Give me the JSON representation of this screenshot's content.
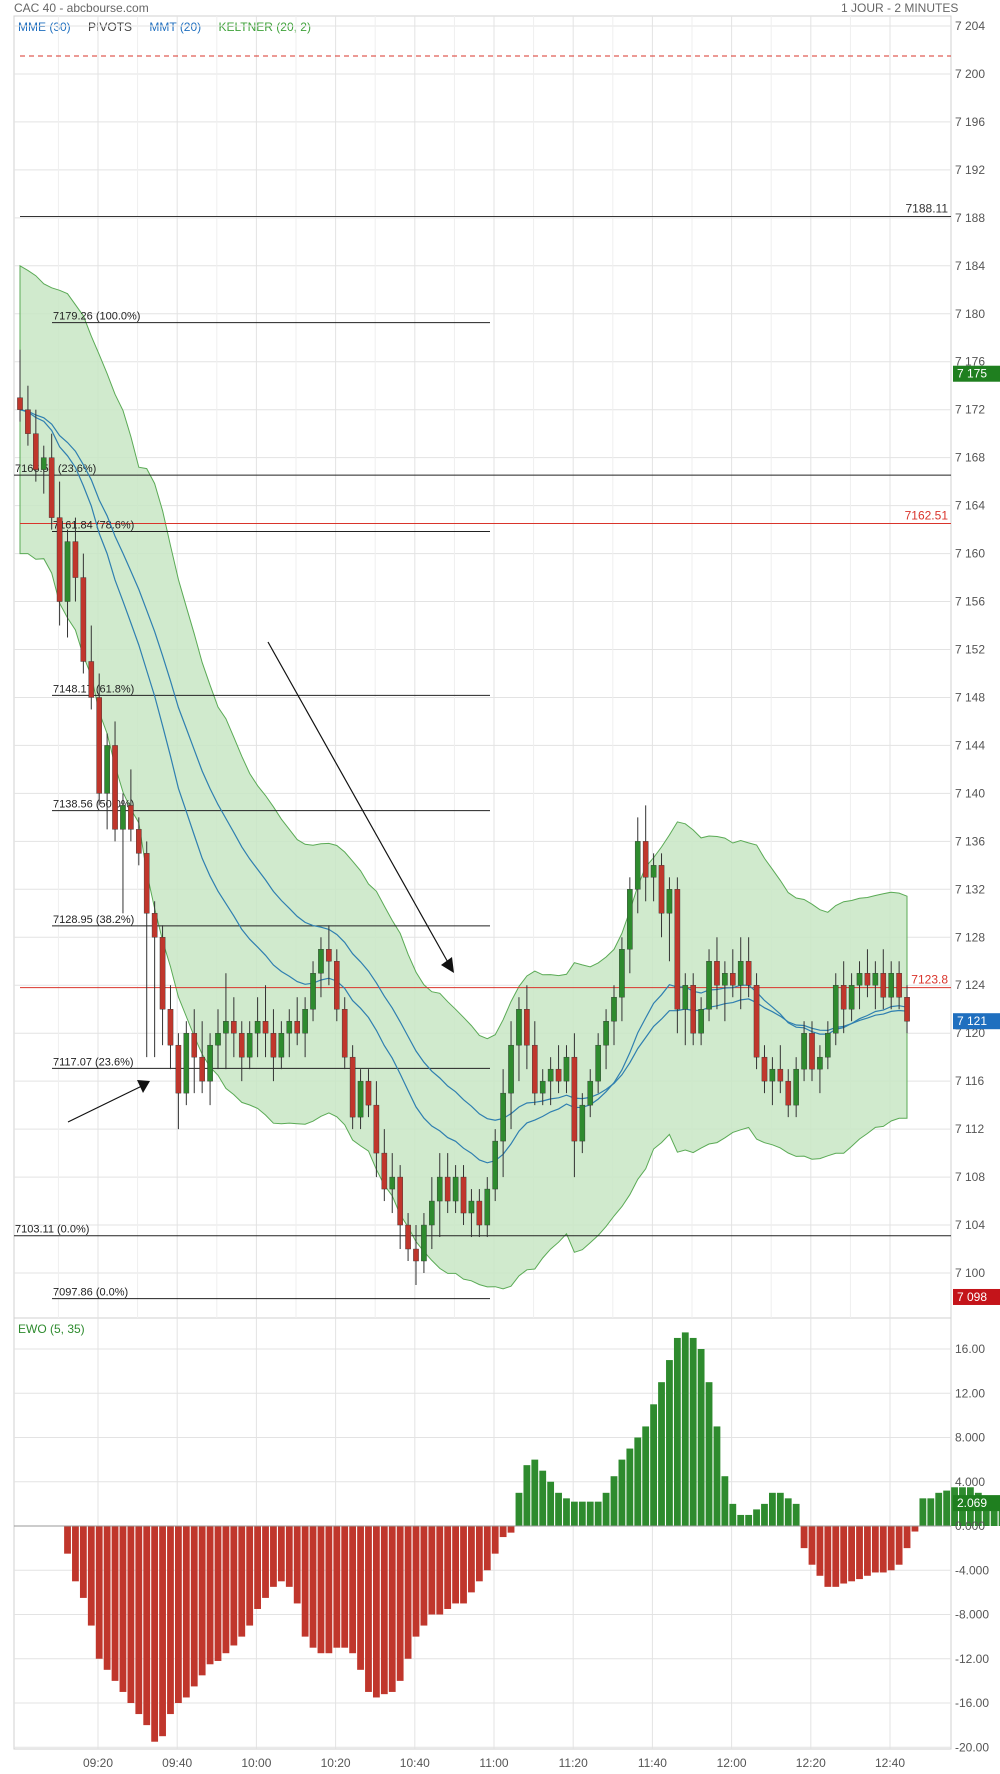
{
  "header": {
    "symbol_source": "CAC 40 - abcbourse.com",
    "timeframe": "1 JOUR - 2 MINUTES"
  },
  "legend_price": [
    {
      "label": "MME (30)",
      "color": "#1f6fbf"
    },
    {
      "label": "PIVOTS",
      "color": "#444444"
    },
    {
      "label": "MMT (20)",
      "color": "#1f6fbf"
    },
    {
      "label": "KELTNER (20, 2)",
      "color": "#3fa23a"
    }
  ],
  "legend_indicator": {
    "label": "EWO (5, 35)",
    "color": "#2e8b2e"
  },
  "colors": {
    "up": "#2e8b2e",
    "down": "#c0362c",
    "keltner_fill": "#c8e6c4",
    "keltner_line": "#5aaa55",
    "ma": "#2f7fb0",
    "grid": "#e3e3e3",
    "text": "#444444"
  },
  "chart_data": [
    {
      "type": "candlestick",
      "x_tick_labels": [
        "09:20",
        "09:40",
        "10:00",
        "10:20",
        "10:40",
        "11:00",
        "11:20",
        "11:40",
        "12:00",
        "12:20",
        "12:40"
      ],
      "y_tick_labels": [
        "7 204",
        "7 200",
        "7 196",
        "7 192",
        "7 188",
        "7 184",
        "7 180",
        "7 176",
        "7 172",
        "7 168",
        "7 164",
        "7 160",
        "7 156",
        "7 152",
        "7 148",
        "7 144",
        "7 140",
        "7 136",
        "7 132",
        "7 128",
        "7 124",
        "7 120",
        "7 116",
        "7 112",
        "7 108",
        "7 104",
        "7 100"
      ],
      "ylim": [
        7096.5,
        7205
      ],
      "candles": [
        [
          7173,
          7177,
          7171,
          7172
        ],
        [
          7172,
          7174,
          7169,
          7170
        ],
        [
          7170,
          7172,
          7166,
          7167
        ],
        [
          7167,
          7169,
          7165,
          7168
        ],
        [
          7168,
          7170,
          7162,
          7163
        ],
        [
          7163,
          7166,
          7154,
          7156
        ],
        [
          7156,
          7162,
          7153,
          7161
        ],
        [
          7161,
          7163,
          7156,
          7158
        ],
        [
          7158,
          7160,
          7150,
          7151
        ],
        [
          7151,
          7154,
          7147,
          7148
        ],
        [
          7148,
          7150,
          7139,
          7140
        ],
        [
          7140,
          7145,
          7137,
          7144
        ],
        [
          7144,
          7146,
          7136,
          7137
        ],
        [
          7137,
          7140,
          7130,
          7139
        ],
        [
          7139,
          7142,
          7136,
          7137
        ],
        [
          7137,
          7138,
          7134,
          7135
        ],
        [
          7135,
          7136,
          7118,
          7130
        ],
        [
          7130,
          7131,
          7118,
          7128
        ],
        [
          7128,
          7129,
          7119,
          7122
        ],
        [
          7122,
          7124,
          7117,
          7119
        ],
        [
          7119,
          7120,
          7112,
          7115
        ],
        [
          7115,
          7121,
          7114,
          7120
        ],
        [
          7120,
          7122,
          7115,
          7118
        ],
        [
          7118,
          7121,
          7115,
          7116
        ],
        [
          7116,
          7120,
          7114,
          7119
        ],
        [
          7119,
          7122,
          7117,
          7120
        ],
        [
          7120,
          7125,
          7117,
          7121
        ],
        [
          7121,
          7123,
          7118,
          7120
        ],
        [
          7120,
          7121,
          7116,
          7118
        ],
        [
          7118,
          7121,
          7117,
          7120
        ],
        [
          7120,
          7123,
          7118,
          7121
        ],
        [
          7121,
          7124,
          7118,
          7120
        ],
        [
          7120,
          7122,
          7116,
          7118
        ],
        [
          7118,
          7121,
          7117,
          7120
        ],
        [
          7120,
          7122,
          7118,
          7121
        ],
        [
          7121,
          7123,
          7119,
          7120
        ],
        [
          7120,
          7123,
          7118,
          7122
        ],
        [
          7122,
          7126,
          7121,
          7125
        ],
        [
          7125,
          7128,
          7123,
          7127
        ],
        [
          7127,
          7129,
          7124,
          7126
        ],
        [
          7126,
          7127,
          7121,
          7122
        ],
        [
          7122,
          7123,
          7117,
          7118
        ],
        [
          7118,
          7119,
          7112,
          7113
        ],
        [
          7113,
          7117,
          7112,
          7116
        ],
        [
          7116,
          7117,
          7113,
          7114
        ],
        [
          7114,
          7116,
          7108,
          7110
        ],
        [
          7110,
          7112,
          7106,
          7107
        ],
        [
          7107,
          7110,
          7105,
          7108
        ],
        [
          7108,
          7109,
          7102,
          7104
        ],
        [
          7104,
          7105,
          7101,
          7102
        ],
        [
          7102,
          7104,
          7099,
          7101
        ],
        [
          7101,
          7105,
          7100,
          7104
        ],
        [
          7104,
          7108,
          7102,
          7106
        ],
        [
          7106,
          7110,
          7103,
          7108
        ],
        [
          7108,
          7110,
          7105,
          7106
        ],
        [
          7106,
          7109,
          7105,
          7108
        ],
        [
          7108,
          7109,
          7104,
          7105
        ],
        [
          7105,
          7107,
          7103,
          7106
        ],
        [
          7106,
          7107,
          7103,
          7104
        ],
        [
          7104,
          7108,
          7103,
          7107
        ],
        [
          7107,
          7112,
          7106,
          7111
        ],
        [
          7111,
          7117,
          7108,
          7115
        ],
        [
          7115,
          7121,
          7112,
          7119
        ],
        [
          7119,
          7123,
          7116,
          7122
        ],
        [
          7122,
          7124,
          7117,
          7119
        ],
        [
          7119,
          7121,
          7114,
          7115
        ],
        [
          7115,
          7117,
          7114,
          7116
        ],
        [
          7116,
          7118,
          7114,
          7117
        ],
        [
          7117,
          7119,
          7115,
          7116
        ],
        [
          7116,
          7119,
          7115,
          7118
        ],
        [
          7118,
          7120,
          7108,
          7111
        ],
        [
          7111,
          7115,
          7110,
          7114
        ],
        [
          7114,
          7117,
          7113,
          7116
        ],
        [
          7116,
          7120,
          7115,
          7119
        ],
        [
          7119,
          7122,
          7117,
          7121
        ],
        [
          7121,
          7124,
          7119,
          7123
        ],
        [
          7123,
          7128,
          7121,
          7127
        ],
        [
          7127,
          7133,
          7125,
          7132
        ],
        [
          7132,
          7138,
          7130,
          7136
        ],
        [
          7136,
          7139,
          7131,
          7133
        ],
        [
          7133,
          7135,
          7131,
          7134
        ],
        [
          7134,
          7135,
          7128,
          7130
        ],
        [
          7130,
          7133,
          7126,
          7132
        ],
        [
          7132,
          7133,
          7120,
          7122
        ],
        [
          7122,
          7125,
          7119,
          7124
        ],
        [
          7124,
          7125,
          7119,
          7120
        ],
        [
          7120,
          7123,
          7119,
          7122
        ],
        [
          7122,
          7127,
          7121,
          7126
        ],
        [
          7126,
          7128,
          7122,
          7124
        ],
        [
          7124,
          7126,
          7121,
          7125
        ],
        [
          7125,
          7127,
          7123,
          7124
        ],
        [
          7124,
          7128,
          7122,
          7126
        ],
        [
          7126,
          7128,
          7123,
          7124
        ],
        [
          7124,
          7125,
          7117,
          7118
        ],
        [
          7118,
          7119,
          7115,
          7116
        ],
        [
          7116,
          7118,
          7114,
          7117
        ],
        [
          7117,
          7119,
          7115,
          7116
        ],
        [
          7116,
          7117,
          7113,
          7114
        ],
        [
          7114,
          7118,
          7113,
          7117
        ],
        [
          7117,
          7121,
          7116,
          7120
        ],
        [
          7120,
          7121,
          7116,
          7117
        ],
        [
          7117,
          7119,
          7115,
          7118
        ],
        [
          7118,
          7121,
          7117,
          7120
        ],
        [
          7120,
          7125,
          7119,
          7124
        ],
        [
          7124,
          7126,
          7120,
          7122
        ],
        [
          7122,
          7125,
          7121,
          7124
        ],
        [
          7124,
          7126,
          7122,
          7125
        ],
        [
          7125,
          7127,
          7123,
          7124
        ],
        [
          7124,
          7126,
          7122,
          7125
        ],
        [
          7125,
          7127,
          7122,
          7123
        ],
        [
          7123,
          7126,
          7122,
          7125
        ],
        [
          7125,
          7126,
          7122,
          7123
        ],
        [
          7123,
          7124,
          7120,
          7121
        ]
      ],
      "horizontal_levels": [
        {
          "label": "7188.11",
          "value": 7188.11,
          "color": "#333333",
          "dash": false,
          "span": "full"
        },
        {
          "label": "7162.51",
          "value": 7162.51,
          "color": "#d9342b",
          "dash": false,
          "span": "full"
        },
        {
          "label": "7123.8",
          "value": 7123.8,
          "color": "#d9342b",
          "dash": false,
          "span": "full"
        },
        {
          "value": 7201.5,
          "color": "#d9342b",
          "dash": true,
          "span": "full"
        }
      ],
      "fibonacci_a": [
        {
          "label": "7179.26  (100.0%)",
          "value": 7179.26
        },
        {
          "label": "7161.84  (78.6%)",
          "value": 7161.84
        },
        {
          "label": "7148.17  (61.8%)",
          "value": 7148.17
        },
        {
          "label": "7138.56  (50.0%)",
          "value": 7138.56
        },
        {
          "label": "7128.95  (38.2%)",
          "value": 7128.95
        },
        {
          "label": "7117.07  (23.6%)",
          "value": 7117.07
        },
        {
          "label": "7097.86  (0.0%)",
          "value": 7097.86
        }
      ],
      "fibonacci_b": [
        {
          "label": "7166.54  (23.6%)",
          "value": 7166.54
        },
        {
          "label": "7103.11  (0.0%)",
          "value": 7103.11
        }
      ],
      "price_badges": [
        {
          "label": "7 175",
          "value": 7175,
          "color": "#1f7f1f"
        },
        {
          "label": "7 121",
          "value": 7121,
          "color": "#1f6fbf"
        },
        {
          "label": "7 098",
          "value": 7098,
          "color": "#c4141a"
        }
      ]
    },
    {
      "type": "histogram",
      "series_name": "EWO (5, 35)",
      "y_tick_labels": [
        "16.00",
        "12.00",
        "8.000",
        "4.000",
        "0.000",
        "-4.000",
        "-8.000",
        "-12.00",
        "-16.00",
        "-20.00"
      ],
      "ylim": [
        -20.5,
        18
      ],
      "values": [
        0,
        0,
        0,
        0,
        0,
        0,
        -2.5,
        -5,
        -6.5,
        -9,
        -12,
        -13,
        -14,
        -15,
        -16,
        -17,
        -18,
        -19.5,
        -19,
        -17,
        -16,
        -15.5,
        -14.5,
        -13.5,
        -12.5,
        -12.2,
        -11.5,
        -10.8,
        -10,
        -9,
        -7.5,
        -6.5,
        -5.5,
        -5,
        -5.5,
        -7,
        -10,
        -11,
        -11.5,
        -11.5,
        -11,
        -11,
        -11.5,
        -13,
        -15,
        -15.5,
        -15.2,
        -15,
        -14,
        -12,
        -10,
        -9,
        -8,
        -8,
        -7.5,
        -7,
        -7,
        -6,
        -5,
        -4,
        -2.5,
        -1,
        -0.6,
        3,
        5.5,
        6,
        5,
        4,
        3,
        2.5,
        2.2,
        2.2,
        2.2,
        2.2,
        3,
        4.5,
        6,
        7,
        8,
        9,
        11,
        13,
        15,
        17,
        17.5,
        17,
        16,
        13,
        9,
        4.5,
        2,
        1,
        1,
        1.5,
        2,
        3,
        3,
        2.5,
        2,
        -2,
        -3.5,
        -4.5,
        -5.5,
        -5.5,
        -5.2,
        -5,
        -4.8,
        -4.5,
        -4.2,
        -4.2,
        -4,
        -3.5,
        -2,
        -0.5,
        2.5,
        2.5,
        3,
        3.2,
        3.5,
        3.5,
        3.5,
        3,
        2.5,
        2,
        1.5,
        1
      ],
      "badge": {
        "label": "2.069",
        "value": 2.069,
        "color": "#1f7f1f"
      }
    }
  ]
}
